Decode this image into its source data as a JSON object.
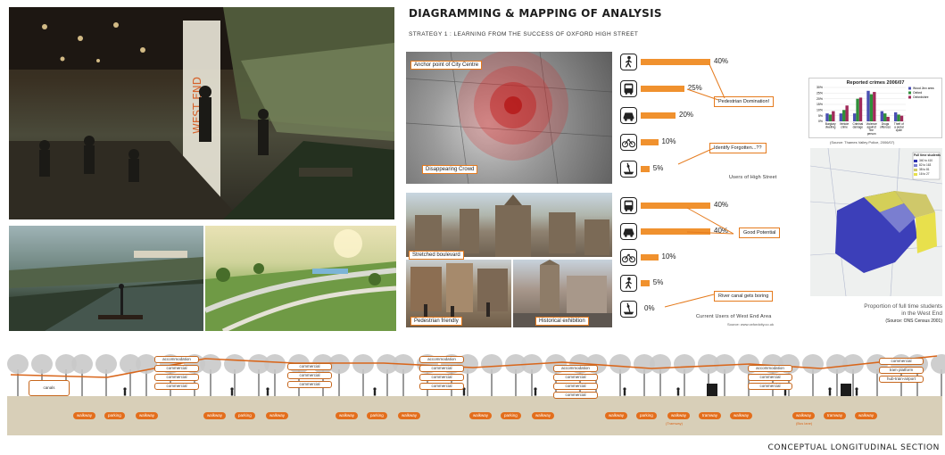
{
  "header": {
    "title": "DIAGRAMMING & MAPPING OF ANALYSIS",
    "subtitle": "STRATEGY 1 : LEARNING FROM THE SUCCESS OF OXFORD HIGH STREET"
  },
  "render_signage": "WEST END",
  "photo_labels": {
    "anchor": "Anchor point of City Centre",
    "crowd": "Disappearing Crowd",
    "boulevard": "Stretched boulevard",
    "pedestrian": "Pedestrian friendly",
    "historical": "Historical exhibition"
  },
  "high_street": {
    "caption": "Users of High Street",
    "rows": [
      {
        "icon": "walking-person-icon",
        "value": 40,
        "label": "40%"
      },
      {
        "icon": "bus-icon",
        "value": 25,
        "label": "25%"
      },
      {
        "icon": "car-icon",
        "value": 20,
        "label": "20%"
      },
      {
        "icon": "bicycle-icon",
        "value": 10,
        "label": "10%"
      },
      {
        "icon": "boat-icon",
        "value": 5,
        "label": "5%"
      }
    ],
    "callouts": {
      "dominant": "Pedestrian Domination!",
      "forgotten": "Identify Forgotten...??"
    }
  },
  "west_end": {
    "caption": "Current Users of West End Area",
    "source": "Source: www.oxfordcity.co.uk",
    "rows": [
      {
        "icon": "bus-icon",
        "value": 40,
        "label": "40%"
      },
      {
        "icon": "car-icon",
        "value": 40,
        "label": "40%"
      },
      {
        "icon": "bicycle-icon",
        "value": 10,
        "label": "10%"
      },
      {
        "icon": "walking-person-icon",
        "value": 5,
        "label": "5%"
      },
      {
        "icon": "boat-icon",
        "value": 0,
        "label": "0%"
      }
    ],
    "callouts": {
      "potential": "Good Potential",
      "boring": "River canal gets boring"
    }
  },
  "chart_data": {
    "type": "bar",
    "title": "Reported crimes 2006/07",
    "categories": [
      "Burglary dwelling",
      "Vehicle crime",
      "Criminal damage",
      "Violence against the person",
      "Drugs offences",
      "Theft of a pedal cycle"
    ],
    "series": [
      {
        "name": "Wood Jinx area",
        "color": "#4a4fb3",
        "values": [
          7,
          7,
          7,
          27,
          9,
          8
        ]
      },
      {
        "name": "Oxford",
        "color": "#2f8f3a",
        "values": [
          6,
          10,
          20,
          24,
          7,
          6
        ]
      },
      {
        "name": "Oxfordshire",
        "color": "#a02a5a",
        "values": [
          9,
          14,
          21,
          26,
          4,
          5
        ]
      }
    ],
    "ylim": [
      0,
      30
    ],
    "yticks": [
      "0%",
      "5%",
      "10%",
      "15%",
      "20%",
      "25%",
      "30%"
    ],
    "legend": "top-right",
    "note": "(Source: Thames Valley Police, 2006/07)"
  },
  "ward_map": {
    "legend_title": "Full time students",
    "legend_items": [
      "340 to 410",
      "82 to 163",
      "38 to 81",
      "16 to 27"
    ],
    "caption_lines": [
      "Proportion of full time students",
      "in the West End",
      "(Source: ONS Census 2001)"
    ]
  },
  "section": {
    "title": "CONCEPTUAL LONGITUDINAL SECTION",
    "stacks": [
      {
        "x": 32,
        "y": 426,
        "w": 46,
        "labels": [
          "canals"
        ]
      },
      {
        "x": 173,
        "y": 399,
        "w": 50,
        "labels": [
          "accommodation",
          "commercial",
          "commercial",
          "commercial"
        ]
      },
      {
        "x": 322,
        "y": 407,
        "w": 50,
        "labels": [
          "commercial",
          "commercial",
          "commercial"
        ]
      },
      {
        "x": 470,
        "y": 399,
        "w": 50,
        "labels": [
          "accommodation",
          "commercial",
          "commercial",
          "commercial"
        ]
      },
      {
        "x": 620,
        "y": 409,
        "w": 50,
        "labels": [
          "accommodation",
          "commercial",
          "commercial",
          "commercial"
        ]
      },
      {
        "x": 838,
        "y": 409,
        "w": 50,
        "labels": [
          "accommodation",
          "commercial",
          "commercial"
        ]
      },
      {
        "x": 985,
        "y": 401,
        "w": 50,
        "labels": [
          "commercial",
          "tram platform",
          "hub-train-airport"
        ]
      }
    ],
    "pills": [
      [
        "walkway",
        "parking",
        "walkway"
      ],
      [
        "walkway",
        "parking",
        "walkway"
      ],
      [
        "walkway",
        "parking",
        "walkway"
      ],
      [
        "walkway",
        "parking",
        "walkway"
      ],
      [
        "walkway",
        "parking",
        "walkway",
        "tramway",
        "walkway"
      ],
      [
        "walkway",
        "tramway",
        "walkway"
      ]
    ],
    "sub_labels": [
      "(Tramway)",
      "(Bus lane)"
    ]
  }
}
